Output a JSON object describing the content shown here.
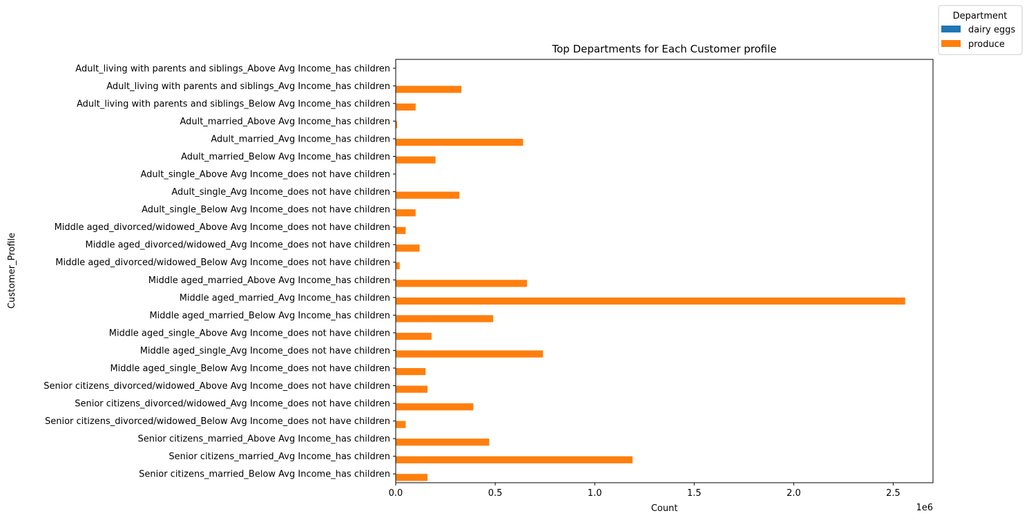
{
  "chart_data": {
    "type": "bar",
    "orientation": "horizontal",
    "title": "Top Departments for Each Customer profile",
    "xlabel": "Count",
    "ylabel": "Customer_Profile",
    "x_scale_label": "1e6",
    "x_unit_multiplier": 1000000,
    "xlim": [
      0,
      2.7
    ],
    "xticks": [
      0.0,
      0.5,
      1.0,
      1.5,
      2.0,
      2.5
    ],
    "xtick_labels": [
      "0.0",
      "0.5",
      "1.0",
      "1.5",
      "2.0",
      "2.5"
    ],
    "grid": false,
    "legend": {
      "title": "Department",
      "placement": "top-right, outside plot",
      "entries": [
        "dairy eggs",
        "produce"
      ]
    },
    "categories": [
      "Adult_living with parents and siblings_Above Avg Income_has children",
      "Adult_living with parents and siblings_Avg Income_has children",
      "Adult_living with parents and siblings_Below Avg Income_has children",
      "Adult_married_Above Avg Income_has children",
      "Adult_married_Avg Income_has children",
      "Adult_married_Below Avg Income_has children",
      "Adult_single_Above Avg Income_does not have children",
      "Adult_single_Avg Income_does not have children",
      "Adult_single_Below Avg Income_does not have children",
      "Middle aged_divorced/widowed_Above Avg Income_does not have children",
      "Middle aged_divorced/widowed_Avg Income_does not have children",
      "Middle aged_divorced/widowed_Below Avg Income_does not have children",
      "Middle aged_married_Above Avg Income_has children",
      "Middle aged_married_Avg Income_has children",
      "Middle aged_married_Below Avg Income_has children",
      "Middle aged_single_Above Avg Income_does not have children",
      "Middle aged_single_Avg Income_does not have children",
      "Middle aged_single_Below Avg Income_does not have children",
      "Senior citizens_divorced/widowed_Above Avg Income_does not have children",
      "Senior citizens_divorced/widowed_Avg Income_does not have children",
      "Senior citizens_divorced/widowed_Below Avg Income_does not have children",
      "Senior citizens_married_Above Avg Income_has children",
      "Senior citizens_married_Avg Income_has children",
      "Senior citizens_married_Below Avg Income_has children"
    ],
    "series": [
      {
        "name": "dairy eggs",
        "color": "#1f77b4",
        "values": [
          0.002,
          null,
          null,
          null,
          null,
          null,
          null,
          null,
          null,
          null,
          null,
          null,
          null,
          null,
          null,
          null,
          null,
          null,
          null,
          null,
          null,
          null,
          null,
          null
        ]
      },
      {
        "name": "produce",
        "color": "#ff7f0e",
        "values": [
          null,
          0.33,
          0.1,
          0.007,
          0.64,
          0.2,
          0.002,
          0.32,
          0.1,
          0.05,
          0.12,
          0.02,
          0.66,
          2.56,
          0.49,
          0.18,
          0.74,
          0.15,
          0.16,
          0.39,
          0.05,
          0.47,
          1.19,
          0.16
        ]
      }
    ]
  }
}
